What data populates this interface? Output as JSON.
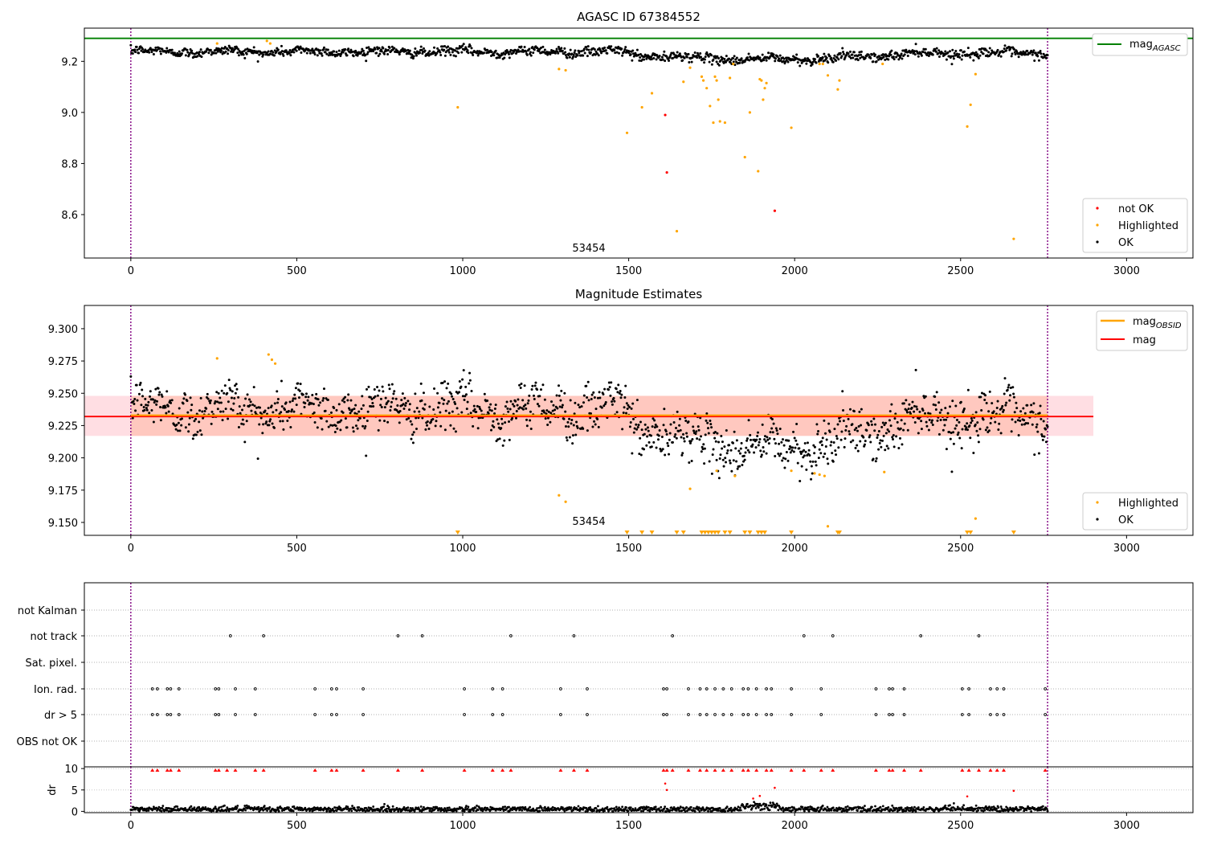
{
  "chart_data": [
    {
      "type": "scatter",
      "title": "AGASC ID 67384552",
      "xlim": [
        -140,
        3200
      ],
      "ylim": [
        8.43,
        9.33
      ],
      "xticks": [
        0,
        500,
        1000,
        1500,
        2000,
        2500,
        3000
      ],
      "yticks": [
        8.6,
        8.8,
        9.0,
        9.2
      ],
      "ytick_labels": [
        "8.6",
        "8.8",
        "9.0",
        "9.2"
      ],
      "vlines": [
        0,
        2762
      ],
      "mag_agasc": 9.29,
      "annotation": {
        "text": "53454",
        "x": 1380,
        "y": 8.455
      },
      "legend_top": {
        "label_main": "mag",
        "label_sub": "AGASC",
        "color": "#008000",
        "placement": "top-right"
      },
      "legend_bottom": {
        "placement": "lower-right",
        "entries": [
          {
            "label": "not OK",
            "color": "#ff0000"
          },
          {
            "label": "Highlighted",
            "color": "#ffa500"
          },
          {
            "label": "OK",
            "color": "#000000"
          }
        ]
      },
      "ok_series": {
        "x_start": 0,
        "x_end": 2762,
        "n": 1400
      },
      "highlighted_points": [
        [
          260,
          9.27
        ],
        [
          410,
          9.28
        ],
        [
          420,
          9.27
        ],
        [
          985,
          9.02
        ],
        [
          1290,
          9.17
        ],
        [
          1310,
          9.165
        ],
        [
          1495,
          8.92
        ],
        [
          1540,
          9.02
        ],
        [
          1570,
          9.075
        ],
        [
          1645,
          8.535
        ],
        [
          1665,
          9.12
        ],
        [
          1685,
          9.175
        ],
        [
          1720,
          9.14
        ],
        [
          1725,
          9.125
        ],
        [
          1735,
          9.095
        ],
        [
          1745,
          9.025
        ],
        [
          1755,
          8.96
        ],
        [
          1760,
          9.14
        ],
        [
          1765,
          9.125
        ],
        [
          1770,
          9.05
        ],
        [
          1775,
          8.965
        ],
        [
          1790,
          8.96
        ],
        [
          1805,
          9.135
        ],
        [
          1815,
          9.19
        ],
        [
          1850,
          8.825
        ],
        [
          1865,
          9.0
        ],
        [
          1890,
          8.77
        ],
        [
          1895,
          9.13
        ],
        [
          1900,
          9.125
        ],
        [
          1905,
          9.05
        ],
        [
          1910,
          9.095
        ],
        [
          1915,
          9.115
        ],
        [
          1990,
          8.94
        ],
        [
          2075,
          9.19
        ],
        [
          2085,
          9.19
        ],
        [
          2100,
          9.145
        ],
        [
          2130,
          9.09
        ],
        [
          2135,
          9.125
        ],
        [
          2265,
          9.19
        ],
        [
          2520,
          8.945
        ],
        [
          2530,
          9.03
        ],
        [
          2545,
          9.15
        ],
        [
          2660,
          8.505
        ]
      ],
      "notok_points": [
        [
          1610,
          8.99
        ],
        [
          1615,
          8.765
        ],
        [
          1940,
          8.615
        ]
      ]
    },
    {
      "type": "scatter",
      "title": "Magnitude Estimates",
      "xlim": [
        -140,
        3200
      ],
      "ylim": [
        9.14,
        9.318
      ],
      "xticks": [
        0,
        500,
        1000,
        1500,
        2000,
        2500,
        3000
      ],
      "yticks": [
        9.15,
        9.175,
        9.2,
        9.225,
        9.25,
        9.275,
        9.3
      ],
      "ytick_labels": [
        "9.150",
        "9.175",
        "9.200",
        "9.225",
        "9.250",
        "9.275",
        "9.300"
      ],
      "vlines": [
        0,
        2762
      ],
      "mag": 9.232,
      "mag_band": [
        9.217,
        9.248
      ],
      "mag_obsid": {
        "value": 9.233,
        "x_range": [
          0,
          2762
        ]
      },
      "annotation": {
        "text": "53454",
        "x": 1380,
        "y": 9.148
      },
      "legend_top": {
        "placement": "top-right",
        "entries": [
          {
            "label_main": "mag",
            "label_sub": "OBSID",
            "color": "#ffa500"
          },
          {
            "label_main": "mag",
            "label_sub": "",
            "color": "#ff0000"
          }
        ]
      },
      "legend_bottom": {
        "placement": "lower-right",
        "entries": [
          {
            "label": "Highlighted",
            "color": "#ffa500"
          },
          {
            "label": "OK",
            "color": "#000000"
          }
        ]
      },
      "ok_series": {
        "x_start": 0,
        "x_end": 2762,
        "n": 1400
      },
      "highlighted_points": [
        [
          260,
          9.277
        ],
        [
          415,
          9.28
        ],
        [
          425,
          9.276
        ],
        [
          435,
          9.273
        ],
        [
          1290,
          9.171
        ],
        [
          1310,
          9.166
        ],
        [
          1685,
          9.176
        ],
        [
          1765,
          9.19
        ],
        [
          1820,
          9.186
        ],
        [
          1990,
          9.19
        ],
        [
          2060,
          9.188
        ],
        [
          2075,
          9.187
        ],
        [
          2090,
          9.186
        ],
        [
          2100,
          9.147
        ],
        [
          2270,
          9.189
        ],
        [
          2545,
          9.153
        ]
      ],
      "clipped_low_x": [
        985,
        1495,
        1540,
        1570,
        1645,
        1665,
        1720,
        1730,
        1740,
        1750,
        1760,
        1770,
        1790,
        1805,
        1850,
        1865,
        1890,
        1900,
        1910,
        1990,
        2130,
        2135,
        2520,
        2530,
        2660
      ]
    },
    {
      "type": "scatter",
      "xlim": [
        -140,
        3200
      ],
      "xticks": [
        0,
        500,
        1000,
        1500,
        2000,
        2500,
        3000
      ],
      "vlines": [
        0,
        2762
      ],
      "flag_rows": [
        "not Kalman",
        "not track",
        "Sat. pixel.",
        "Ion. rad.",
        "dr > 5",
        "OBS not OK"
      ],
      "flag_points": {
        "not Kalman": [],
        "not track": [
          300,
          400,
          805,
          878,
          1145,
          1335,
          1632,
          2028,
          2115,
          2380,
          2555
        ],
        "Sat. pixel.": [],
        "Ion. rad.": [
          65,
          80,
          110,
          120,
          145,
          255,
          265,
          315,
          375,
          555,
          605,
          620,
          700,
          1005,
          1090,
          1120,
          1295,
          1375,
          1605,
          1615,
          1680,
          1715,
          1735,
          1760,
          1785,
          1810,
          1845,
          1860,
          1885,
          1915,
          1930,
          1990,
          2080,
          2245,
          2285,
          2295,
          2330,
          2505,
          2525,
          2590,
          2610,
          2630,
          2755
        ],
        "dr > 5": [
          65,
          80,
          110,
          120,
          145,
          255,
          265,
          315,
          375,
          555,
          605,
          620,
          700,
          1005,
          1090,
          1120,
          1295,
          1375,
          1605,
          1615,
          1680,
          1715,
          1735,
          1760,
          1785,
          1810,
          1845,
          1860,
          1885,
          1915,
          1930,
          1990,
          2080,
          2245,
          2285,
          2295,
          2330,
          2505,
          2525,
          2590,
          2610,
          2630,
          2755
        ],
        "OBS not OK": []
      },
      "dr": {
        "ylabel": "dr",
        "ylim": [
          -0.3,
          10
        ],
        "yticks": [
          0,
          5,
          10
        ],
        "ytick_labels": [
          "0",
          "5",
          "10"
        ],
        "clipped_high_x": [
          65,
          80,
          110,
          120,
          145,
          255,
          265,
          290,
          315,
          375,
          400,
          555,
          605,
          620,
          700,
          805,
          878,
          1005,
          1090,
          1120,
          1145,
          1295,
          1335,
          1375,
          1605,
          1615,
          1632,
          1680,
          1715,
          1735,
          1760,
          1785,
          1810,
          1845,
          1860,
          1885,
          1915,
          1930,
          1990,
          2028,
          2080,
          2115,
          2245,
          2285,
          2295,
          2330,
          2380,
          2505,
          2525,
          2555,
          2590,
          2610,
          2630,
          2755
        ],
        "red_points": [
          [
            1610,
            6.5
          ],
          [
            1615,
            5.0
          ],
          [
            1940,
            5.5
          ],
          [
            2520,
            3.5
          ],
          [
            2660,
            4.8
          ],
          [
            1875,
            3.0
          ],
          [
            1895,
            3.6
          ]
        ],
        "ok_series": {
          "x_start": 0,
          "x_end": 2762,
          "n": 1400
        }
      }
    }
  ]
}
